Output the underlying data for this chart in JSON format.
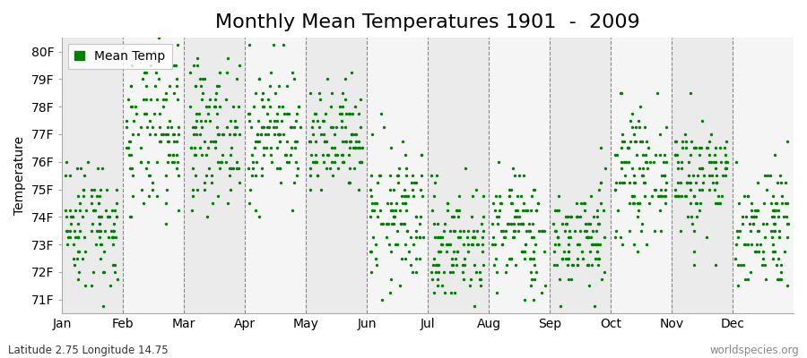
{
  "title": "Monthly Mean Temperatures 1901  -  2009",
  "ylabel": "Temperature",
  "xlabel_months": [
    "Jan",
    "Feb",
    "Mar",
    "Apr",
    "May",
    "Jun",
    "Jul",
    "Aug",
    "Sep",
    "Oct",
    "Nov",
    "Dec"
  ],
  "legend_label": "Mean Temp",
  "footer_left": "Latitude 2.75 Longitude 14.75",
  "footer_right": "worldspecies.org",
  "ylim": [
    70.5,
    80.5
  ],
  "yticks": [
    71,
    72,
    73,
    74,
    75,
    76,
    77,
    78,
    79,
    80
  ],
  "ytick_labels": [
    "71F",
    "72F",
    "73F",
    "74F",
    "75F",
    "76F",
    "77F",
    "78F",
    "79F",
    "80F"
  ],
  "dot_color": "#008000",
  "dot_size": 6,
  "background_color": "#ffffff",
  "band_color_odd": "#ebebeb",
  "band_color_even": "#f5f5f5",
  "monthly_means": [
    73.8,
    76.8,
    77.1,
    77.1,
    76.6,
    74.0,
    73.0,
    73.5,
    73.2,
    75.5,
    75.5,
    73.7
  ],
  "monthly_stds": [
    1.2,
    1.5,
    1.3,
    1.2,
    1.0,
    1.3,
    1.1,
    1.1,
    1.0,
    1.1,
    1.1,
    1.2
  ],
  "n_years": 109,
  "seed": 42,
  "title_fontsize": 16,
  "label_fontsize": 10,
  "tick_fontsize": 10,
  "footer_fontsize": 8.5,
  "dpi": 100
}
